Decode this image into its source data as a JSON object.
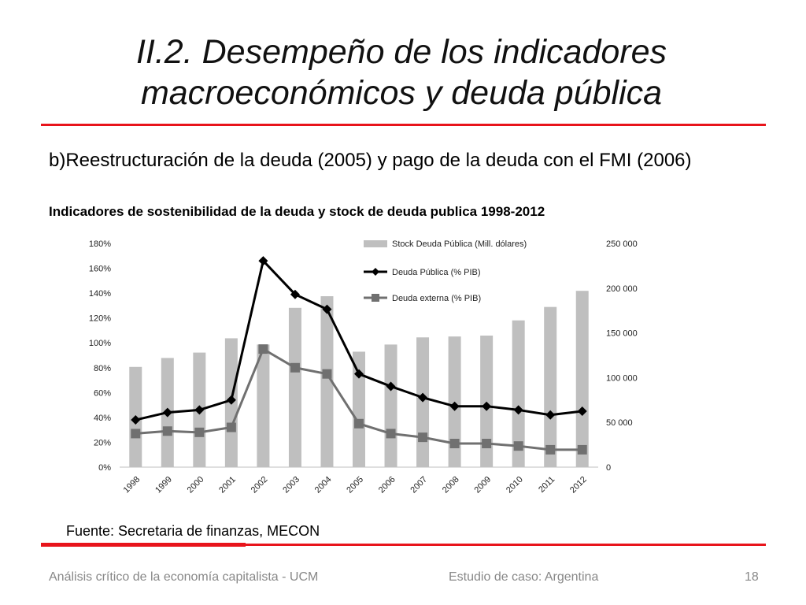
{
  "slide": {
    "title_line1": "II.2.  Desempeño de los indicadores",
    "title_line2": "macroeconómicos y deuda pública",
    "subtitle": "b)Reestructuración de la deuda (2005) y pago de la deuda con el FMI (2006)",
    "chart_title": "Indicadores de sostenibilidad de la deuda y stock de deuda publica 1998-2012",
    "source": "Fuente: Secretaria de finanzas, MECON",
    "footer_left": "Análisis crítico de la economía capitalista - UCM",
    "footer_center": "Estudio de caso: Argentina",
    "page_number": "18",
    "accent_color": "#e8141b"
  },
  "chart_data": {
    "type": "bar",
    "categories": [
      "1998",
      "1999",
      "2000",
      "2001",
      "2002",
      "2003",
      "2004",
      "2005",
      "2006",
      "2007",
      "2008",
      "2009",
      "2010",
      "2011",
      "2012"
    ],
    "left_axis": {
      "ylim": [
        0,
        180
      ],
      "ticks": [
        "0%",
        "20%",
        "40%",
        "60%",
        "80%",
        "100%",
        "120%",
        "140%",
        "160%",
        "180%"
      ]
    },
    "right_axis": {
      "ylim": [
        0,
        250000
      ],
      "ticks": [
        "0",
        "50 000",
        "100 000",
        "150 000",
        "200 000",
        "250 000"
      ]
    },
    "series": [
      {
        "name": "Stock Deuda Pública (Mill. dólares)",
        "type": "bar",
        "axis": "right",
        "color": "#bfbfbf",
        "values": [
          112000,
          122000,
          128000,
          144000,
          137000,
          178000,
          191000,
          129000,
          137000,
          145000,
          146000,
          147000,
          164000,
          179000,
          197000
        ]
      },
      {
        "name": "Deuda Pública (% PIB)",
        "type": "line",
        "axis": "left",
        "color": "#000000",
        "marker": "diamond",
        "values": [
          38,
          44,
          46,
          54,
          166,
          139,
          127,
          75,
          65,
          56,
          49,
          49,
          46,
          42,
          45
        ]
      },
      {
        "name": "Deuda externa (% PIB)",
        "type": "line",
        "axis": "left",
        "color": "#707070",
        "marker": "square",
        "values": [
          27,
          29,
          28,
          32,
          95,
          80,
          75,
          35,
          27,
          24,
          19,
          19,
          17,
          14,
          14
        ]
      }
    ],
    "legend_position": "top-center",
    "grid": false
  }
}
